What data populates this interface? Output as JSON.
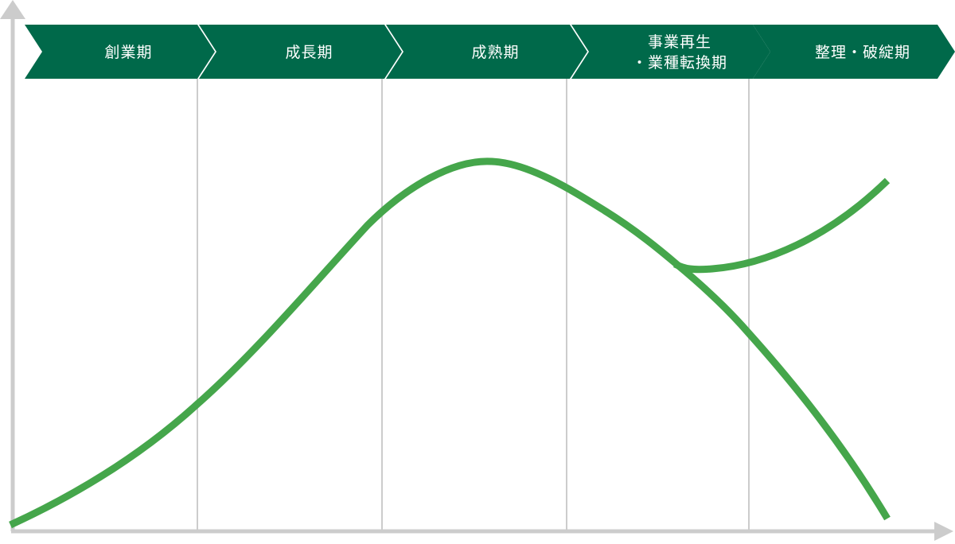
{
  "phases": [
    {
      "lines": [
        "創業期"
      ]
    },
    {
      "lines": [
        "成長期"
      ]
    },
    {
      "lines": [
        "成熟期"
      ]
    },
    {
      "lines": [
        "事業再生",
        "・業種転換期"
      ]
    },
    {
      "lines": [
        "整理・破綻期"
      ]
    }
  ],
  "colors": {
    "phase_bar": "#00694A",
    "curve": "#45A64B",
    "axis": "#CCCCCC",
    "divider": "#CCCCCC"
  }
}
